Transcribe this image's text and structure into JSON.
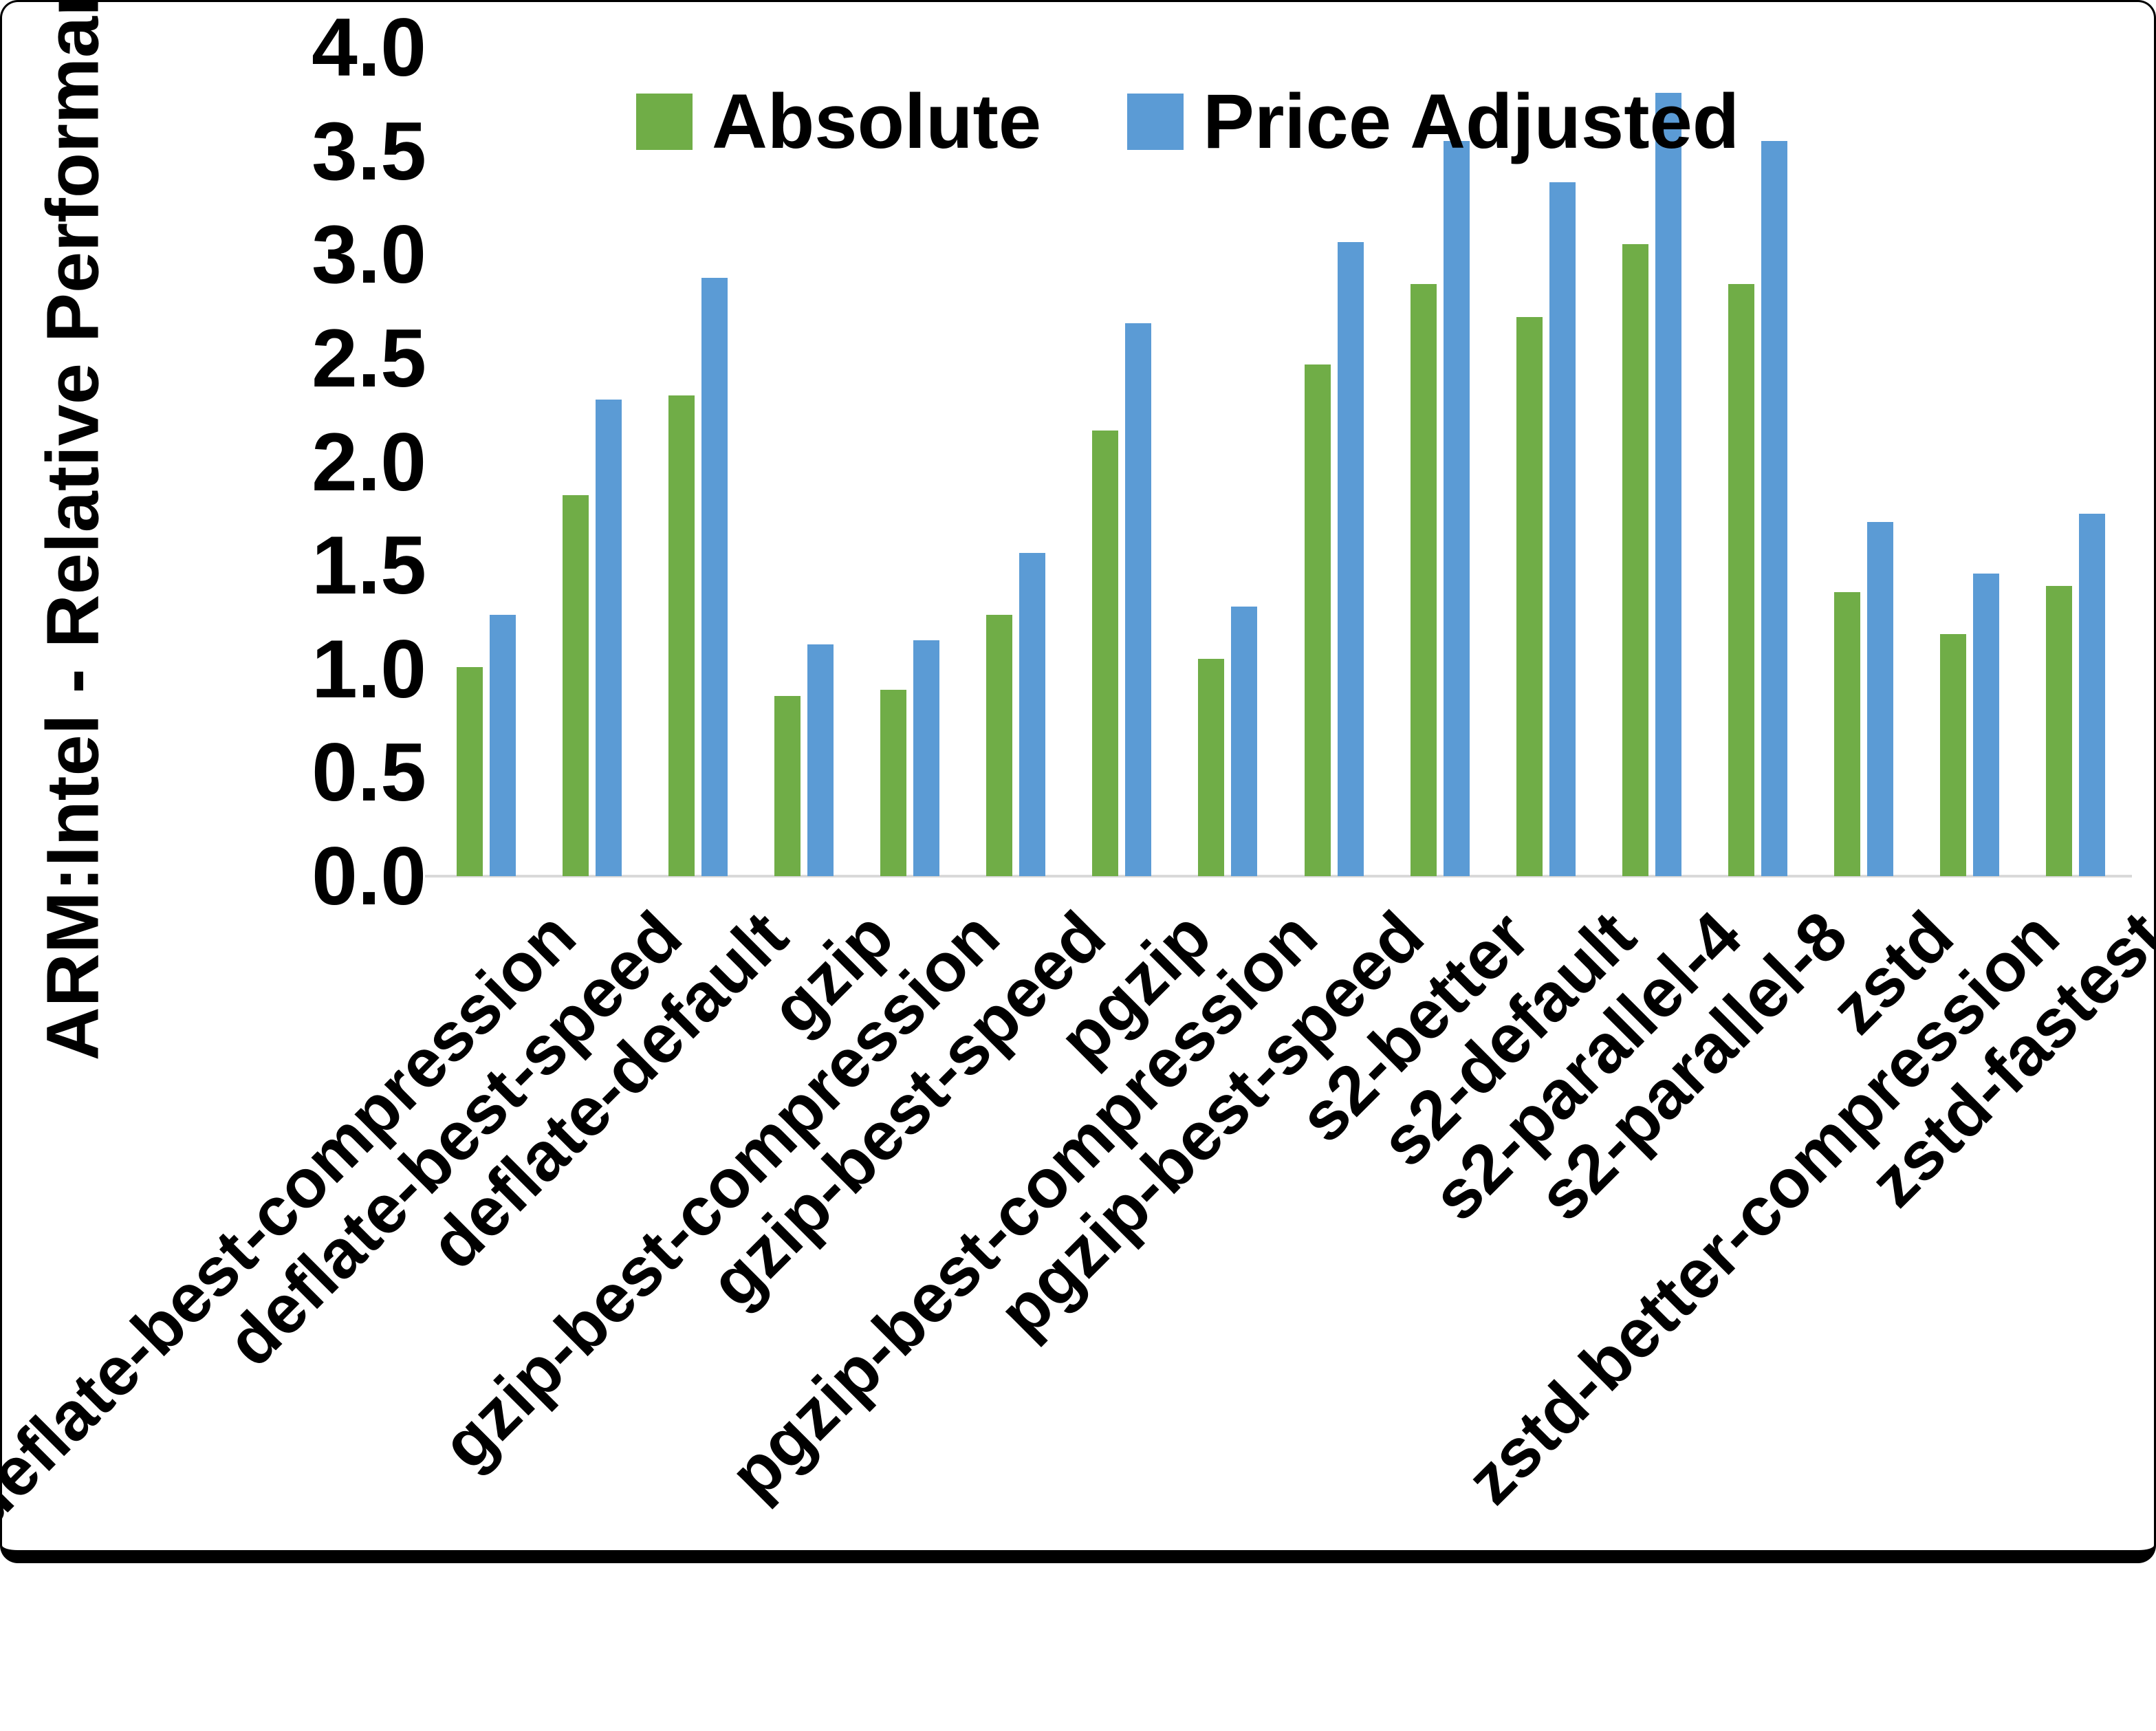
{
  "chart_data": {
    "type": "bar",
    "title": "",
    "ylabel": "ARM:Intel - Relative Performance",
    "ylim": [
      0.0,
      4.0
    ],
    "ytick_labels": [
      "0.0",
      "0.5",
      "1.0",
      "1.5",
      "2.0",
      "2.5",
      "3.0",
      "3.5",
      "4.0"
    ],
    "grid": false,
    "legend_position": "top-center",
    "categories": [
      "deflate-best-compression",
      "deflate-best-speed",
      "deflate-default",
      "gzip",
      "gzip-best-compression",
      "gzip-best-speed",
      "pgzip",
      "pgzip-best-compression",
      "pgzip-best-speed",
      "s2-better",
      "s2-default",
      "s2-parallel-4",
      "s2-parallel-8",
      "zstd",
      "zstd-better-compression",
      "zstd-fastest"
    ],
    "series": [
      {
        "name": "Absolute",
        "color": "#70AD47",
        "values": [
          1.01,
          1.84,
          2.32,
          0.87,
          0.9,
          1.26,
          2.15,
          1.05,
          2.47,
          2.86,
          2.7,
          3.05,
          2.86,
          1.37,
          1.17,
          1.4
        ]
      },
      {
        "name": "Price Adjusted",
        "color": "#5B9BD5",
        "values": [
          1.26,
          2.3,
          2.89,
          1.12,
          1.14,
          1.56,
          2.67,
          1.3,
          3.06,
          3.55,
          3.35,
          3.78,
          3.55,
          1.71,
          1.46,
          1.75
        ]
      }
    ]
  },
  "colors": {
    "axis_line": "#D9D9D9",
    "text": "#000000",
    "frame": "#000000",
    "background": "#FFFFFF"
  }
}
